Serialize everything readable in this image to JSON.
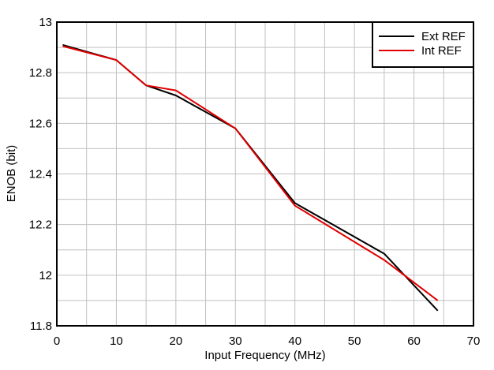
{
  "chart_data": {
    "type": "line",
    "title": "",
    "xlabel": "Input Frequency (MHz)",
    "ylabel": "ENOB (bit)",
    "xlim": [
      0,
      70
    ],
    "ylim": [
      11.8,
      13
    ],
    "x_ticks": [
      0,
      10,
      20,
      30,
      40,
      50,
      60,
      70
    ],
    "y_ticks": [
      11.8,
      12,
      12.2,
      12.4,
      12.6,
      12.8,
      13
    ],
    "y_tick_labels": [
      "11.8",
      "12",
      "12.2",
      "12.4",
      "12.6",
      "12.8",
      "13"
    ],
    "x_minor_grid_step": 5,
    "y_minor_grid_step": 0.1,
    "grid": true,
    "legend_position": "upper right",
    "series": [
      {
        "name": "Ext REF",
        "color": "#000000",
        "x": [
          1,
          10,
          15,
          20,
          30,
          40,
          55,
          64
        ],
        "y": [
          12.91,
          12.85,
          12.75,
          12.71,
          12.58,
          12.285,
          12.085,
          11.86
        ]
      },
      {
        "name": "Int REF",
        "color": "#e00000",
        "x": [
          1,
          10,
          15,
          20,
          30,
          40,
          55,
          64
        ],
        "y": [
          12.905,
          12.85,
          12.75,
          12.73,
          12.58,
          12.275,
          12.06,
          11.9
        ]
      }
    ]
  },
  "colors": {
    "grid": "#c0c0c0",
    "axis": "#000000",
    "background": "#ffffff"
  }
}
